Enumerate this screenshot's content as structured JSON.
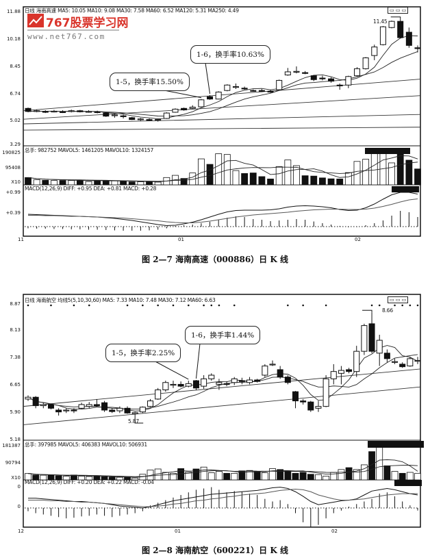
{
  "watermark": {
    "name": "767股票学习网",
    "url": "www.net767.com",
    "brand_color": "#d9342b"
  },
  "figures": [
    {
      "header": "日线  海南高速 MA5: 10.05 MA10: 9.08 MA30: 7.58 MA60: 6.52 MA120: 5.31 MA250: 4.49",
      "price_ticks": [
        "11.88",
        "10.18",
        "8.45",
        "6.74",
        "5.02",
        "3.29"
      ],
      "volume_header": "总手: 982752 MAVOL5: 1461205 MAVOL10: 1324157",
      "volume_ticks": [
        "190825",
        "95408",
        "X10"
      ],
      "macd_header": "MACD(12,26,9) DIFF: +0.95 DEA: +0.81 MACD: +0.28",
      "macd_ticks": [
        "+0.99",
        "+0.39"
      ],
      "x_ticks": [
        "11",
        "01",
        "02"
      ],
      "peak_label": "11.45",
      "callouts": [
        "1-5，换手率15.50%",
        "1-6，换手率10.63%"
      ],
      "caption": "图 2—7   海南高速（000886）日 K 线"
    },
    {
      "header": "日线  海南航空 均线5(5,10,30,60) MA5: 7.33 MA10: 7.48 MA30: 7.12 MA60: 6.63",
      "price_ticks": [
        "8.87",
        "8.13",
        "7.38",
        "6.65",
        "5.90",
        "5.18"
      ],
      "volume_header": "总手: 397985 MAVOL5: 406383 MAVOL10: 506931",
      "volume_ticks": [
        "181387",
        "90794",
        "X10"
      ],
      "macd_header": "MACD(12,26,9) DIFF: +0.20 DEA: +0.22 MACD: -0.04",
      "macd_ticks": [
        "0",
        "0"
      ],
      "x_ticks": [
        "12",
        "01",
        "02"
      ],
      "peak_label": "8.66",
      "low_label": "5.87",
      "callouts": [
        "1-5，换手率2.25%",
        "1-6，换手率1.44%"
      ],
      "caption": "图 2—8   海南航空（600221）日 K 线"
    }
  ],
  "chart_data": [
    {
      "type": "candlestick",
      "title": "海南高速（000886）日 K 线",
      "price_range": [
        3.29,
        11.88
      ],
      "ohlc": [
        [
          5.7,
          5.75,
          5.45,
          5.5
        ],
        [
          5.55,
          5.62,
          5.45,
          5.55
        ],
        [
          5.5,
          5.58,
          5.4,
          5.48
        ],
        [
          5.5,
          5.6,
          5.44,
          5.52
        ],
        [
          5.48,
          5.58,
          5.4,
          5.46
        ],
        [
          5.5,
          5.62,
          5.44,
          5.55
        ],
        [
          5.55,
          5.6,
          5.44,
          5.48
        ],
        [
          5.5,
          5.58,
          5.42,
          5.5
        ],
        [
          5.48,
          5.55,
          5.38,
          5.46
        ],
        [
          5.4,
          5.45,
          5.15,
          5.2
        ],
        [
          5.25,
          5.35,
          5.1,
          5.28
        ],
        [
          5.22,
          5.3,
          5.05,
          5.2
        ],
        [
          5.1,
          5.15,
          4.95,
          4.98
        ],
        [
          5.0,
          5.08,
          4.9,
          5.02
        ],
        [
          4.98,
          5.05,
          4.88,
          4.95
        ],
        [
          4.96,
          5.02,
          4.85,
          4.99
        ],
        [
          5.05,
          5.45,
          5.02,
          5.4
        ],
        [
          5.45,
          5.7,
          5.42,
          5.65
        ],
        [
          5.7,
          5.75,
          5.55,
          5.6
        ],
        [
          5.7,
          5.9,
          5.65,
          5.78
        ],
        [
          5.8,
          6.3,
          5.78,
          6.25
        ],
        [
          6.45,
          6.55,
          6.25,
          6.3
        ],
        [
          6.3,
          6.8,
          6.28,
          6.75
        ],
        [
          6.85,
          7.25,
          6.8,
          7.2
        ],
        [
          7.1,
          7.3,
          6.95,
          7.1
        ],
        [
          7.0,
          7.1,
          6.9,
          6.98
        ],
        [
          6.85,
          6.92,
          6.78,
          6.8
        ],
        [
          6.85,
          6.95,
          6.75,
          6.82
        ],
        [
          6.8,
          6.9,
          6.7,
          6.78
        ],
        [
          6.9,
          7.55,
          6.88,
          7.5
        ],
        [
          7.85,
          8.3,
          7.8,
          8.05
        ],
        [
          8.05,
          8.4,
          7.95,
          8.08
        ],
        [
          8.0,
          8.1,
          7.9,
          7.98
        ],
        [
          7.8,
          7.85,
          7.45,
          7.55
        ],
        [
          7.65,
          7.8,
          7.5,
          7.62
        ],
        [
          7.6,
          7.7,
          7.35,
          7.45
        ],
        [
          7.2,
          7.3,
          6.9,
          7.15
        ],
        [
          7.2,
          7.8,
          7.0,
          7.75
        ],
        [
          7.8,
          8.35,
          7.75,
          8.25
        ],
        [
          8.25,
          9.0,
          8.2,
          8.95
        ],
        [
          9.1,
          9.8,
          8.8,
          9.65
        ],
        [
          9.8,
          11.0,
          9.75,
          10.95
        ],
        [
          10.9,
          11.35,
          10.85,
          11.3
        ],
        [
          11.3,
          11.45,
          10.2,
          10.25
        ],
        [
          10.6,
          10.9,
          9.6,
          9.75
        ],
        [
          9.6,
          9.75,
          9.3,
          9.55
        ]
      ],
      "long_ma": [
        {
          "name": "MA30",
          "start": 5.55,
          "end": 7.58
        },
        {
          "name": "MA60",
          "start": 5.0,
          "end": 6.52
        },
        {
          "name": "MA120",
          "start": 4.7,
          "end": 5.31
        },
        {
          "name": "MA250",
          "start": 4.3,
          "end": 4.49
        }
      ],
      "volume_range": [
        0,
        190825
      ],
      "volume": [
        40000,
        28000,
        25000,
        24000,
        24000,
        24000,
        25000,
        18000,
        22000,
        22000,
        22000,
        20000,
        16000,
        17000,
        16000,
        15000,
        40000,
        52000,
        35000,
        65000,
        142000,
        112000,
        170000,
        166000,
        78000,
        62000,
        65000,
        45000,
        32000,
        100000,
        136000,
        105000,
        50000,
        48000,
        38000,
        33000,
        32000,
        67000,
        128000,
        140000,
        170000,
        175000,
        120000,
        190000,
        135000,
        87000
      ],
      "macd_range": [
        -0.2,
        1.0
      ],
      "diff": [
        0.36,
        0.35,
        0.34,
        0.33,
        0.32,
        0.31,
        0.3,
        0.29,
        0.28,
        0.26,
        0.24,
        0.21,
        0.18,
        0.14,
        0.1,
        0.06,
        0.03,
        0.04,
        0.08,
        0.13,
        0.2,
        0.28,
        0.36,
        0.43,
        0.47,
        0.48,
        0.48,
        0.48,
        0.49,
        0.52,
        0.57,
        0.6,
        0.61,
        0.6,
        0.58,
        0.55,
        0.5,
        0.47,
        0.48,
        0.55,
        0.66,
        0.8,
        0.93,
        1.0,
        1.0,
        0.95
      ],
      "dea": [
        0.33,
        0.33,
        0.32,
        0.32,
        0.31,
        0.3,
        0.3,
        0.29,
        0.28,
        0.27,
        0.26,
        0.25,
        0.23,
        0.21,
        0.19,
        0.17,
        0.14,
        0.12,
        0.11,
        0.11,
        0.13,
        0.16,
        0.2,
        0.24,
        0.28,
        0.31,
        0.34,
        0.36,
        0.38,
        0.4,
        0.42,
        0.45,
        0.47,
        0.49,
        0.5,
        0.51,
        0.51,
        0.5,
        0.5,
        0.51,
        0.54,
        0.59,
        0.65,
        0.72,
        0.78,
        0.81
      ],
      "macd": [
        -0.05,
        -0.06,
        -0.06,
        -0.07,
        -0.07,
        -0.08,
        -0.08,
        -0.09,
        -0.09,
        -0.1,
        -0.11,
        -0.12,
        -0.12,
        -0.12,
        -0.11,
        -0.09,
        -0.05,
        0.02,
        0.04,
        0.06,
        0.1,
        0.14,
        0.2,
        0.26,
        0.3,
        0.28,
        0.22,
        0.2,
        0.16,
        0.18,
        0.2,
        0.22,
        0.2,
        0.15,
        0.1,
        0.06,
        0.02,
        -0.02,
        -0.01,
        0.04,
        0.1,
        0.18,
        0.32,
        0.46,
        0.42,
        0.28
      ],
      "callout_candles": [
        20,
        21
      ],
      "peak_candle": 43
    },
    {
      "type": "candlestick",
      "title": "海南航空（600221）日 K 线",
      "price_range": [
        5.18,
        8.87
      ],
      "ohlc": [
        [
          6.3,
          6.4,
          6.25,
          6.35
        ],
        [
          6.35,
          6.38,
          6.05,
          6.12
        ],
        [
          6.12,
          6.2,
          6.05,
          6.15
        ],
        [
          6.15,
          6.18,
          6.02,
          6.05
        ],
        [
          6.0,
          6.05,
          5.85,
          5.95
        ],
        [
          5.98,
          6.05,
          5.92,
          6.0
        ],
        [
          6.0,
          6.05,
          5.92,
          5.98
        ],
        [
          6.05,
          6.2,
          6.02,
          6.15
        ],
        [
          6.1,
          6.22,
          6.05,
          6.15
        ],
        [
          6.15,
          6.3,
          6.1,
          6.12
        ],
        [
          6.2,
          6.25,
          5.95,
          6.0
        ],
        [
          6.0,
          6.05,
          5.92,
          5.96
        ],
        [
          5.98,
          6.1,
          5.92,
          6.05
        ],
        [
          6.05,
          6.1,
          5.9,
          5.92
        ],
        [
          5.9,
          5.95,
          5.87,
          5.93
        ],
        [
          5.95,
          6.1,
          5.92,
          6.08
        ],
        [
          6.1,
          6.3,
          6.08,
          6.25
        ],
        [
          6.3,
          6.6,
          6.28,
          6.55
        ],
        [
          6.55,
          6.8,
          6.5,
          6.75
        ],
        [
          6.7,
          6.8,
          6.6,
          6.7
        ],
        [
          6.7,
          6.78,
          6.62,
          6.65
        ],
        [
          6.65,
          6.8,
          6.62,
          6.72
        ],
        [
          6.8,
          6.82,
          6.55,
          6.6
        ],
        [
          6.65,
          6.95,
          6.58,
          6.85
        ],
        [
          6.85,
          7.0,
          6.8,
          6.95
        ],
        [
          6.7,
          6.85,
          6.55,
          6.75
        ],
        [
          6.72,
          6.78,
          6.65,
          6.7
        ],
        [
          6.75,
          6.9,
          6.68,
          6.85
        ],
        [
          6.8,
          6.88,
          6.7,
          6.78
        ],
        [
          6.75,
          6.9,
          6.7,
          6.82
        ],
        [
          6.82,
          6.85,
          6.75,
          6.78
        ],
        [
          6.95,
          7.25,
          6.9,
          7.2
        ],
        [
          7.25,
          7.35,
          7.2,
          7.25
        ],
        [
          7.1,
          7.2,
          6.85,
          6.9
        ],
        [
          6.9,
          6.95,
          6.7,
          6.75
        ],
        [
          6.5,
          6.52,
          6.05,
          6.25
        ],
        [
          6.25,
          6.3,
          6.15,
          6.22
        ],
        [
          6.22,
          6.25,
          5.95,
          6.0
        ],
        [
          6.05,
          6.25,
          5.95,
          6.1
        ],
        [
          6.1,
          6.95,
          6.08,
          6.85
        ],
        [
          6.85,
          7.25,
          6.7,
          7.05
        ],
        [
          7.0,
          7.2,
          6.7,
          7.08
        ],
        [
          7.1,
          7.15,
          7.0,
          7.05
        ],
        [
          7.05,
          7.75,
          6.9,
          7.6
        ],
        [
          7.6,
          8.35,
          7.5,
          8.3
        ],
        [
          8.35,
          8.66,
          7.55,
          7.6
        ],
        [
          7.55,
          8.05,
          7.2,
          7.9
        ],
        [
          7.55,
          7.65,
          7.3,
          7.4
        ],
        [
          7.3,
          7.4,
          7.25,
          7.32
        ],
        [
          7.25,
          7.3,
          7.15,
          7.18
        ],
        [
          7.2,
          7.45,
          7.18,
          7.4
        ],
        [
          7.35,
          7.45,
          7.25,
          7.35
        ]
      ],
      "long_ma": [
        {
          "name": "MA30",
          "start": 6.1,
          "end": 7.12
        },
        {
          "name": "MA60",
          "start": 5.6,
          "end": 6.63
        }
      ],
      "volume_range": [
        0,
        181387
      ],
      "volume": [
        34000,
        26000,
        25000,
        24000,
        22000,
        20000,
        26000,
        20000,
        18000,
        20000,
        17000,
        15000,
        14000,
        13000,
        10000,
        30000,
        52000,
        58000,
        40000,
        35000,
        60000,
        42000,
        58000,
        68000,
        38000,
        45000,
        35000,
        35000,
        48000,
        50000,
        45000,
        38000,
        60000,
        55000,
        48000,
        35000,
        40000,
        30000,
        28000,
        20000,
        40000,
        55000,
        65000,
        55000,
        80000,
        150000,
        175000,
        75000,
        45000,
        35000,
        40000,
        35000
      ],
      "macd_range": [
        -0.3,
        0.35
      ],
      "diff": [
        0.15,
        0.15,
        0.14,
        0.13,
        0.12,
        0.11,
        0.1,
        0.1,
        0.09,
        0.08,
        0.07,
        0.05,
        0.03,
        0.02,
        0.01,
        0.0,
        0.02,
        0.05,
        0.08,
        0.11,
        0.13,
        0.15,
        0.17,
        0.19,
        0.21,
        0.22,
        0.23,
        0.24,
        0.25,
        0.26,
        0.27,
        0.29,
        0.31,
        0.32,
        0.3,
        0.25,
        0.18,
        0.1,
        0.05,
        0.07,
        0.09,
        0.11,
        0.12,
        0.14,
        0.2,
        0.26,
        0.28,
        0.3,
        0.28,
        0.25,
        0.22,
        0.2
      ],
      "dea": [
        0.12,
        0.12,
        0.12,
        0.11,
        0.11,
        0.1,
        0.1,
        0.09,
        0.09,
        0.08,
        0.07,
        0.06,
        0.05,
        0.04,
        0.03,
        0.02,
        0.02,
        0.03,
        0.04,
        0.06,
        0.07,
        0.09,
        0.11,
        0.12,
        0.14,
        0.15,
        0.17,
        0.18,
        0.2,
        0.21,
        0.22,
        0.23,
        0.25,
        0.27,
        0.28,
        0.29,
        0.28,
        0.25,
        0.2,
        0.17,
        0.14,
        0.12,
        0.12,
        0.13,
        0.14,
        0.16,
        0.18,
        0.2,
        0.21,
        0.22,
        0.22,
        0.22
      ],
      "macd": [
        -0.05,
        -0.08,
        -0.1,
        -0.12,
        -0.14,
        -0.16,
        -0.15,
        -0.13,
        -0.12,
        -0.1,
        -0.12,
        -0.14,
        -0.12,
        -0.1,
        -0.08,
        -0.05,
        0.04,
        0.08,
        0.12,
        0.16,
        0.2,
        0.24,
        0.28,
        0.3,
        0.32,
        0.28,
        0.24,
        0.26,
        0.25,
        0.22,
        0.2,
        0.14,
        0.1,
        0.12,
        0.06,
        -0.08,
        -0.22,
        -0.3,
        -0.26,
        -0.16,
        -0.08,
        -0.04,
        0.02,
        0.06,
        0.1,
        0.14,
        0.22,
        0.24,
        0.18,
        0.1,
        0.04,
        -0.04
      ],
      "callout_candles": [
        21,
        22
      ],
      "peak_candle": 45,
      "low_candle": 14
    }
  ]
}
